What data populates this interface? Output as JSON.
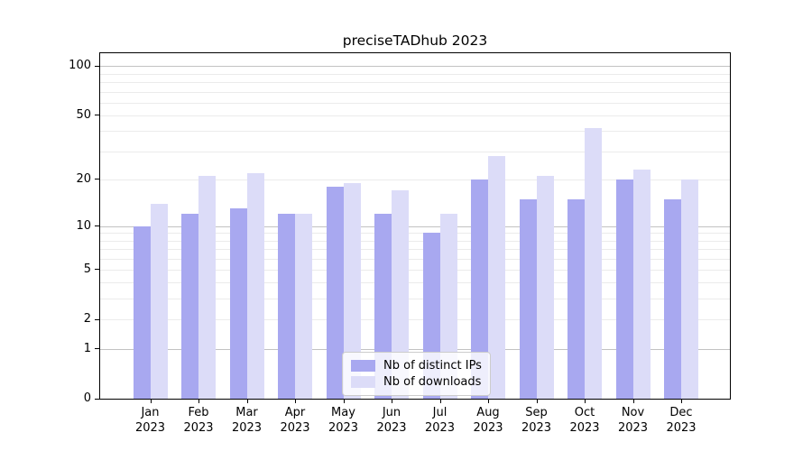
{
  "title": "preciseTADhub 2023",
  "chart_data": {
    "type": "bar",
    "title": "preciseTADhub 2023",
    "categories": [
      "Jan 2023",
      "Feb 2023",
      "Mar 2023",
      "Apr 2023",
      "May 2023",
      "Jun 2023",
      "Jul 2023",
      "Aug 2023",
      "Sep 2023",
      "Oct 2023",
      "Nov 2023",
      "Dec 2023"
    ],
    "months": [
      "Jan",
      "Feb",
      "Mar",
      "Apr",
      "May",
      "Jun",
      "Jul",
      "Aug",
      "Sep",
      "Oct",
      "Nov",
      "Dec"
    ],
    "year": "2023",
    "series": [
      {
        "name": "Nb of distinct IPs",
        "color": "#a8a8f0",
        "values": [
          10,
          12,
          13,
          12,
          18,
          12,
          9,
          20,
          15,
          15,
          20,
          15
        ]
      },
      {
        "name": "Nb of downloads",
        "color": "#dcdcf8",
        "values": [
          14,
          21,
          22,
          12,
          19,
          17,
          12,
          28,
          21,
          42,
          23,
          20
        ]
      }
    ],
    "yscale": "log1p",
    "ylim": [
      0,
      120
    ],
    "yticks": [
      100,
      50,
      20,
      10,
      5,
      2,
      1,
      0
    ],
    "major_gridlines": [
      1,
      10,
      100
    ],
    "minor_gridlines": [
      2,
      3,
      4,
      5,
      6,
      7,
      8,
      9,
      20,
      30,
      40,
      50,
      60,
      70,
      80,
      90
    ],
    "xlabel": "",
    "ylabel": "",
    "grid": true,
    "legend_position": "lower center"
  }
}
